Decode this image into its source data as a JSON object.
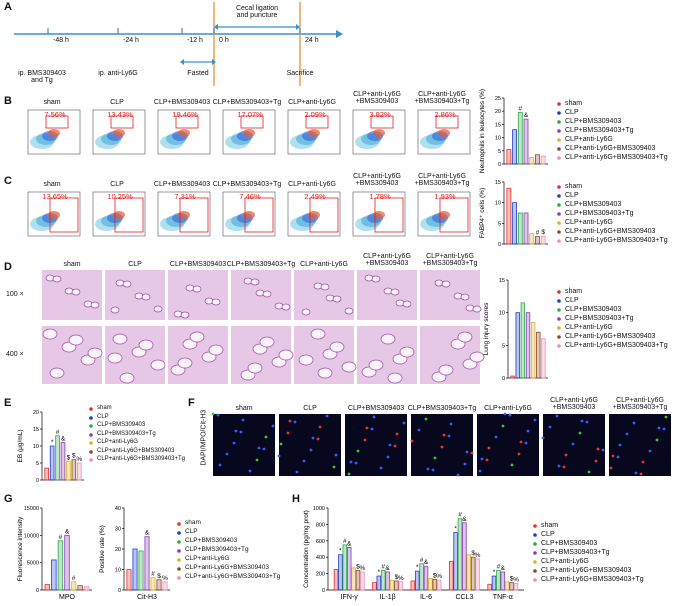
{
  "groups": [
    {
      "name": "sham",
      "color": "#e8302a"
    },
    {
      "name": "CLP",
      "color": "#1f3fd1"
    },
    {
      "name": "CLP+BMS309403",
      "color": "#2fa84a"
    },
    {
      "name": "CLP+BMS309403+Tg",
      "color": "#8a3fb5"
    },
    {
      "name": "CLP+anti-Ly6G",
      "color": "#e0b020"
    },
    {
      "name": "CLP+anti-Ly6G+BMS309403",
      "color": "#8b4a2b"
    },
    {
      "name": "CLP+anti-Ly6G+BMS309403+Tg",
      "color": "#f08cb4"
    }
  ],
  "panel_labels": [
    "A",
    "B",
    "C",
    "D",
    "E",
    "F",
    "G",
    "H"
  ],
  "timeline": {
    "times": [
      "-48 h",
      "-24 h",
      "-12 h",
      "0 h",
      "24 h"
    ],
    "injection_1": "ip. BMS309403\nand Tg",
    "injection_2": "ip. anti-Ly6G",
    "fasted": "Fasted",
    "surgery": "Cecal ligation\nand puncture",
    "end": "Sacrifice"
  },
  "column_labels": [
    "sham",
    "CLP",
    "CLP+BMS309403",
    "CLP+BMS309403+Tg",
    "CLP+anti-Ly6G",
    "CLP+anti-Ly6G\n+BMS309403",
    "CLP+anti-Ly6G\n+BMS309403+Tg"
  ],
  "flow_B": [
    "7.56%",
    "13.43%",
    "19.46%",
    "17.07%",
    "2.09%",
    "3.82%",
    "2.86%"
  ],
  "flow_C": [
    "13.65%",
    "10.25%",
    "7.31%",
    "7.46%",
    "2.49%",
    "1.78%",
    "1.93%"
  ],
  "magnifications": [
    "100 ×",
    "400 ×"
  ],
  "stain_label": "DAPI/MPO/Cit-H3",
  "charts": {
    "B": {
      "type": "bar",
      "y_label": "Neutrophils in leukocytes (%)",
      "ylim": [
        0,
        25
      ],
      "yticks": [
        0,
        5,
        10,
        15,
        20,
        25
      ],
      "values": [
        5.5,
        13,
        19.5,
        17,
        2.5,
        3.5,
        3
      ],
      "annotations": [
        null,
        null,
        "#",
        "&",
        null,
        null,
        null
      ]
    },
    "C": {
      "type": "bar",
      "y_label": "FABP4⁺ cells (%)",
      "ylim": [
        0,
        15
      ],
      "yticks": [
        0,
        5,
        10,
        15
      ],
      "values": [
        13.5,
        10,
        7.5,
        7.5,
        2.5,
        1.8,
        1.9
      ],
      "annotations": [
        null,
        null,
        null,
        null,
        null,
        "#",
        "$"
      ]
    },
    "D": {
      "type": "bar",
      "y_label": "Lung injury scores",
      "ylim": [
        0,
        15
      ],
      "yticks": [
        0,
        5,
        10,
        15
      ],
      "values": [
        0.3,
        10,
        11.5,
        10,
        8.5,
        7,
        6
      ],
      "annotations": [
        null,
        null,
        null,
        null,
        null,
        null,
        null
      ]
    },
    "E": {
      "type": "bar",
      "y_label": "EB (μg/mL)",
      "ylim": [
        0,
        20
      ],
      "yticks": [
        0,
        5,
        10,
        15,
        20
      ],
      "values": [
        3.5,
        10,
        13,
        11,
        5.5,
        6,
        5
      ],
      "annotations": [
        null,
        "*",
        "#",
        "&",
        "$",
        "$",
        "%"
      ]
    },
    "G1": {
      "type": "bar",
      "y_label": "Fluorescence intensity",
      "x_label": "MPO",
      "ylim": [
        0,
        15000
      ],
      "yticks": [
        0,
        5000,
        10000,
        15000
      ],
      "values": [
        1000,
        5500,
        9000,
        10000,
        1500,
        800,
        600
      ],
      "annotations": [
        null,
        null,
        "#",
        "&",
        "#",
        null,
        null
      ]
    },
    "G2": {
      "type": "bar",
      "y_label": "Positive rate (%)",
      "x_label": "Cit-H3",
      "ylim": [
        0,
        40
      ],
      "yticks": [
        0,
        10,
        20,
        30,
        40
      ],
      "values": [
        10,
        20,
        19,
        26,
        6,
        5,
        4
      ],
      "annotations": [
        null,
        null,
        null,
        "&",
        "#",
        "$",
        "%"
      ]
    },
    "H": {
      "type": "grouped_bar",
      "y_label": "Concentration (pg/mg prot)",
      "ylim": [
        0,
        1000
      ],
      "yticks": [
        0,
        200,
        400,
        600,
        800,
        1000
      ],
      "categories": [
        "IFN-γ",
        "IL-1β",
        "IL-6",
        "CCL3",
        "TNF-α"
      ],
      "series": [
        {
          "values": [
            250,
            90,
            110,
            350,
            70
          ],
          "annotations": [
            null,
            null,
            null,
            null,
            null
          ]
        },
        {
          "values": [
            430,
            170,
            230,
            700,
            170
          ],
          "annotations": [
            "*",
            "*",
            "*",
            "*",
            "*"
          ]
        },
        {
          "values": [
            550,
            240,
            320,
            870,
            240
          ],
          "annotations": [
            "#",
            "#",
            "#",
            "#",
            "#"
          ]
        },
        {
          "values": [
            520,
            220,
            290,
            820,
            220
          ],
          "annotations": [
            "&",
            "&",
            "&",
            "&",
            "&"
          ]
        },
        {
          "values": [
            270,
            120,
            140,
            430,
            100
          ],
          "annotations": [
            null,
            null,
            null,
            null,
            null
          ]
        },
        {
          "values": [
            240,
            110,
            130,
            400,
            90
          ],
          "annotations": [
            "$",
            "$",
            "$",
            "$",
            "$"
          ]
        },
        {
          "values": [
            220,
            100,
            120,
            380,
            80
          ],
          "annotations": [
            "%",
            "%",
            "%",
            "%",
            "%"
          ]
        }
      ]
    }
  }
}
